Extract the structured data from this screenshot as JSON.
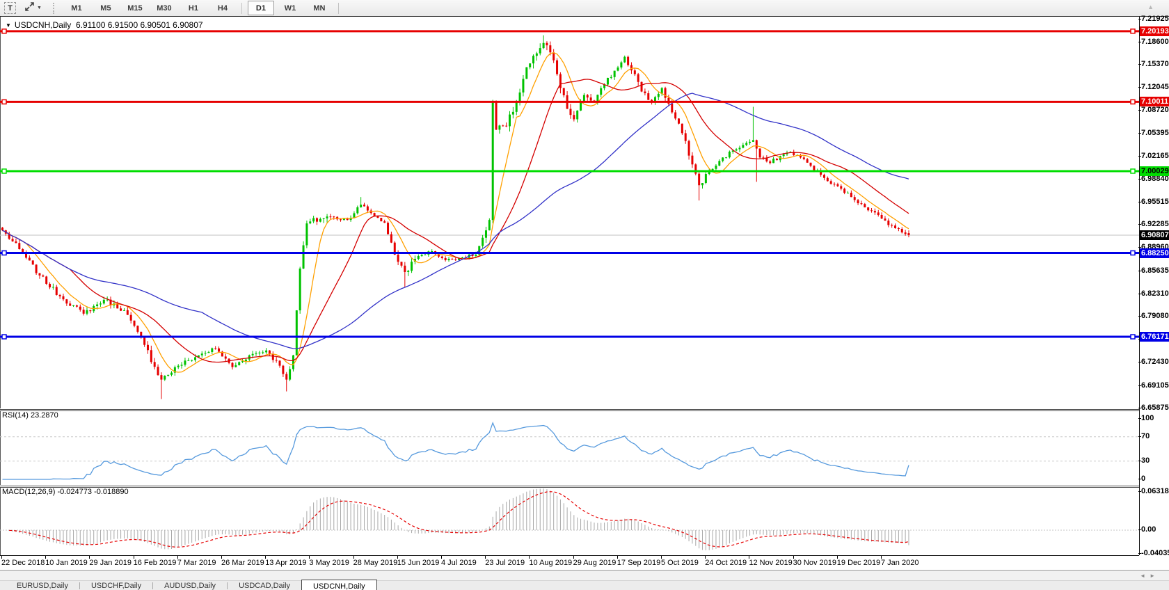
{
  "toolbar": {
    "text_tool_label": "T",
    "tile_tool": "tile-windows",
    "timeframe_groups": [
      [
        "M1",
        "M5",
        "M15",
        "M30",
        "H1",
        "H4"
      ],
      [
        "D1",
        "W1",
        "MN"
      ]
    ],
    "active_timeframe": "D1"
  },
  "chart": {
    "title": "USDCNH,Daily",
    "ohlc_display": "6.91100 6.91500 6.90501 6.90807",
    "current_price": "6.90807",
    "price_axis_ticks": [
      "7.21925",
      "7.18600",
      "7.15370",
      "7.12045",
      "7.08720",
      "7.05395",
      "7.02165",
      "6.98840",
      "6.95515",
      "6.92285",
      "6.88960",
      "6.85635",
      "6.82310",
      "6.79080",
      "6.75755",
      "6.72430",
      "6.69105",
      "6.65875"
    ],
    "levels": [
      {
        "value": "7.20193",
        "price": 7.20193,
        "color": "#e60000",
        "text_color": "#ffffff"
      },
      {
        "value": "7.10011",
        "price": 7.10011,
        "color": "#e60000",
        "text_color": "#ffffff"
      },
      {
        "value": "7.00029",
        "price": 7.00029,
        "color": "#00dd00",
        "text_color": "#000000"
      },
      {
        "value": "6.88250",
        "price": 6.8825,
        "color": "#0000e6",
        "text_color": "#ffffff"
      },
      {
        "value": "6.76171",
        "price": 6.76171,
        "color": "#0000e6",
        "text_color": "#ffffff"
      }
    ]
  },
  "rsi": {
    "label": "RSI(14) 23.2870",
    "last_value": 23.287,
    "axis_ticks": [
      {
        "v": 100,
        "t": "100"
      },
      {
        "v": 70,
        "t": "70"
      },
      {
        "v": 30,
        "t": "30"
      },
      {
        "v": 0,
        "t": "0"
      }
    ],
    "dashed_levels": [
      70,
      30
    ]
  },
  "macd": {
    "label": "MACD(12,26,9) -0.024773 -0.018890",
    "last_macd": -0.024773,
    "last_signal": -0.01889,
    "axis_ticks": [
      {
        "v": 0.063184,
        "t": "0.063184"
      },
      {
        "v": 0,
        "t": "0.00"
      },
      {
        "v": -0.040355,
        "t": "-0.040355"
      }
    ]
  },
  "dates": [
    "22 Dec 2018",
    "10 Jan 2019",
    "29 Jan 2019",
    "16 Feb 2019",
    "7 Mar 2019",
    "26 Mar 2019",
    "13 Apr 2019",
    "3 May 2019",
    "28 May 2019",
    "15 Jun 2019",
    "4 Jul 2019",
    "23 Jul 2019",
    "10 Aug 2019",
    "29 Aug 2019",
    "17 Sep 2019",
    "5 Oct 2019",
    "24 Oct 2019",
    "12 Nov 2019",
    "30 Nov 2019",
    "19 Dec 2019",
    "7 Jan 2020"
  ],
  "tabs": {
    "items": [
      "EURUSD,Daily",
      "USDCHF,Daily",
      "AUDUSD,Daily",
      "USDCAD,Daily",
      "USDCNH,Daily"
    ],
    "active": "USDCNH,Daily"
  },
  "scroll_arrows": [
    "◄",
    "►"
  ],
  "colors": {
    "bull": "#00c200",
    "bear": "#e60000",
    "ma_fast": "#ffa000",
    "ma_mid": "#d40000",
    "ma_slow": "#3232c8",
    "current_line": "#c0c0c0",
    "current_badge_bg": "#000000",
    "current_badge_text": "#ffffff",
    "rsi_line": "#5599dd",
    "rsi_dash": "#c8c8c8",
    "macd_hist": "#a8a8a8",
    "macd_signal": "#e60000",
    "macd_zero": "#c4c4c4"
  },
  "chart_data": {
    "type": "candlestick",
    "symbol": "USDCNH",
    "timeframe": "Daily",
    "bars": 269,
    "last_candle": {
      "o": 6.911,
      "h": 6.915,
      "l": 6.90501,
      "c": 6.90807
    },
    "price_range": {
      "top": 7.2218,
      "bottom": 6.6585
    },
    "close_keyframes": [
      [
        0,
        6.915
      ],
      [
        5,
        6.888
      ],
      [
        11,
        6.85
      ],
      [
        17,
        6.82
      ],
      [
        24,
        6.795
      ],
      [
        30,
        6.815
      ],
      [
        36,
        6.8
      ],
      [
        42,
        6.75
      ],
      [
        47,
        6.7
      ],
      [
        52,
        6.72
      ],
      [
        58,
        6.735
      ],
      [
        63,
        6.745
      ],
      [
        68,
        6.718
      ],
      [
        73,
        6.735
      ],
      [
        78,
        6.742
      ],
      [
        82,
        6.72
      ],
      [
        84,
        6.7
      ],
      [
        86,
        6.735
      ],
      [
        88,
        6.86
      ],
      [
        90,
        6.925
      ],
      [
        96,
        6.935
      ],
      [
        102,
        6.93
      ],
      [
        106,
        6.952
      ],
      [
        109,
        6.94
      ],
      [
        113,
        6.926
      ],
      [
        116,
        6.88
      ],
      [
        119,
        6.855
      ],
      [
        123,
        6.878
      ],
      [
        127,
        6.885
      ],
      [
        131,
        6.872
      ],
      [
        136,
        6.876
      ],
      [
        140,
        6.88
      ],
      [
        143,
        6.915
      ],
      [
        144,
        6.93
      ],
      [
        145,
        7.1
      ],
      [
        146,
        7.06
      ],
      [
        149,
        7.065
      ],
      [
        152,
        7.1
      ],
      [
        155,
        7.15
      ],
      [
        158,
        7.17
      ],
      [
        160,
        7.185
      ],
      [
        163,
        7.16
      ],
      [
        165,
        7.12
      ],
      [
        167,
        7.09
      ],
      [
        169,
        7.075
      ],
      [
        172,
        7.11
      ],
      [
        175,
        7.1
      ],
      [
        178,
        7.125
      ],
      [
        181,
        7.145
      ],
      [
        184,
        7.165
      ],
      [
        187,
        7.14
      ],
      [
        189,
        7.115
      ],
      [
        192,
        7.1
      ],
      [
        195,
        7.12
      ],
      [
        198,
        7.085
      ],
      [
        201,
        7.055
      ],
      [
        204,
        7.01
      ],
      [
        206,
        6.98
      ],
      [
        209,
        7.0
      ],
      [
        212,
        7.015
      ],
      [
        216,
        7.03
      ],
      [
        219,
        7.038
      ],
      [
        222,
        7.045
      ],
      [
        224,
        7.02
      ],
      [
        227,
        7.012
      ],
      [
        230,
        7.022
      ],
      [
        233,
        7.028
      ],
      [
        236,
        7.02
      ],
      [
        239,
        7.008
      ],
      [
        242,
        6.995
      ],
      [
        245,
        6.982
      ],
      [
        248,
        6.975
      ],
      [
        251,
        6.963
      ],
      [
        254,
        6.953
      ],
      [
        257,
        6.943
      ],
      [
        260,
        6.932
      ],
      [
        263,
        6.922
      ],
      [
        266,
        6.912
      ],
      [
        268,
        6.90807
      ]
    ],
    "wick_overrides": {
      "47": {
        "l": 6.672
      },
      "84": {
        "l": 6.683
      },
      "106": {
        "h": 6.963
      },
      "119": {
        "l": 6.833
      },
      "145": {
        "l": 6.925
      },
      "160": {
        "h": 7.196
      },
      "206": {
        "l": 6.958
      },
      "222": {
        "h": 7.093
      },
      "223": {
        "l": 6.985
      }
    },
    "noise_zones": [
      [
        0,
        41,
        0.0035
      ],
      [
        42,
        50,
        0.005
      ],
      [
        51,
        87,
        0.0032
      ],
      [
        88,
        96,
        0.005
      ],
      [
        97,
        115,
        0.003
      ],
      [
        116,
        122,
        0.0045
      ],
      [
        123,
        139,
        0.0022
      ],
      [
        140,
        170,
        0.0055
      ],
      [
        171,
        199,
        0.004
      ],
      [
        200,
        212,
        0.0045
      ],
      [
        213,
        245,
        0.003
      ],
      [
        246,
        268,
        0.0028
      ]
    ],
    "moving_averages": [
      {
        "period": 8,
        "color_key": "ma_fast"
      },
      {
        "period": 21,
        "color_key": "ma_mid"
      },
      {
        "period": 60,
        "color_key": "ma_slow"
      }
    ],
    "indicators": [
      {
        "name": "RSI",
        "period": 14,
        "last": 23.287
      },
      {
        "name": "MACD",
        "fast": 12,
        "slow": 26,
        "signal": 9,
        "last_macd": -0.024773,
        "last_signal": -0.01889
      }
    ],
    "horizontal_levels": [
      7.20193,
      7.10011,
      7.00029,
      6.8825,
      6.76171
    ],
    "x_axis_labels": [
      "22 Dec 2018",
      "10 Jan 2019",
      "29 Jan 2019",
      "16 Feb 2019",
      "7 Mar 2019",
      "26 Mar 2019",
      "13 Apr 2019",
      "3 May 2019",
      "28 May 2019",
      "15 Jun 2019",
      "4 Jul 2019",
      "23 Jul 2019",
      "10 Aug 2019",
      "29 Aug 2019",
      "17 Sep 2019",
      "5 Oct 2019",
      "24 Oct 2019",
      "12 Nov 2019",
      "30 Nov 2019",
      "19 Dec 2019",
      "7 Jan 2020"
    ]
  }
}
